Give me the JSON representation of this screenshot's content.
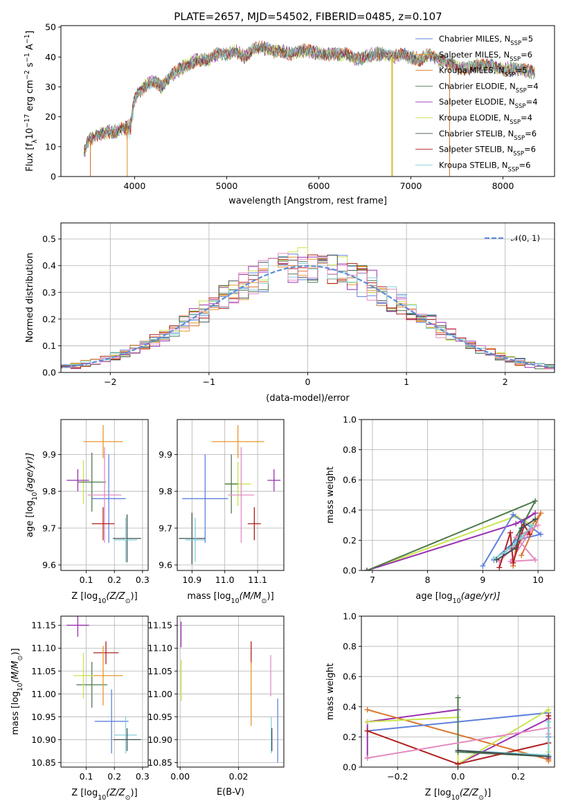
{
  "title": "PLATE=2657, MJD=54502, FIBERID=0485, z=0.107",
  "colors": {
    "Chabrier MILES": "#5e81dd",
    "Salpeter MILES": "#e8962b",
    "Kroupa MILES": "#d9742a",
    "Chabrier ELODIE": "#4d7a4d",
    "Salpeter ELODIE": "#9a2fb0",
    "Kroupa ELODIE": "#c8e44c",
    "Chabrier STELIB": "#3f4f4f",
    "Salpeter STELIB": "#b01e1e",
    "Kroupa STELIB": "#7fd0d8",
    "pinkSeries": "#e48ac0",
    "normal": "#5e8ad6"
  },
  "chart_data": [
    {
      "id": "spectrum",
      "type": "line",
      "xlabel": "wavelength [Angstrom, rest frame]",
      "ylabel_parts": [
        "Flux [f",
        "λ",
        "10",
        "−17",
        " erg cm",
        "−2",
        " s",
        "−1",
        " A",
        "−1",
        "]"
      ],
      "xlim": [
        3200,
        8560
      ],
      "ylim": [
        0,
        50.5
      ],
      "xticks": [
        4000,
        5000,
        6000,
        7000,
        8000
      ],
      "yticks": [
        0,
        10,
        20,
        30,
        40,
        50
      ],
      "legend": [
        {
          "label": "Chabrier MILES, N",
          "sub": "SSP",
          "tail": "=5",
          "color": "#5e81dd"
        },
        {
          "label": "Salpeter MILES, N",
          "sub": "SSP",
          "tail": "=6",
          "color": "#e8962b"
        },
        {
          "label": "Kroupa MILES, N",
          "sub": "SSP",
          "tail": "=5",
          "color": "#d9742a"
        },
        {
          "label": "Chabrier ELODIE, N",
          "sub": "SSP",
          "tail": "=4",
          "color": "#4d7a4d"
        },
        {
          "label": "Salpeter ELODIE, N",
          "sub": "SSP",
          "tail": "=4",
          "color": "#9a2fb0"
        },
        {
          "label": "Kroupa ELODIE, N",
          "sub": "SSP",
          "tail": "=4",
          "color": "#c8e44c"
        },
        {
          "label": "Chabrier STELIB, N",
          "sub": "SSP",
          "tail": "=6",
          "color": "#3f4f4f"
        },
        {
          "label": "Salpeter STELIB, N",
          "sub": "SSP",
          "tail": "=6",
          "color": "#b01e1e"
        },
        {
          "label": "Kroupa STELIB, N",
          "sub": "SSP",
          "tail": "=6",
          "color": "#7fd0d8"
        }
      ],
      "continuum": [
        [
          3450,
          8
        ],
        [
          3500,
          12
        ],
        [
          3600,
          14
        ],
        [
          3700,
          15
        ],
        [
          3800,
          15
        ],
        [
          3850,
          16
        ],
        [
          3950,
          17
        ],
        [
          4000,
          26
        ],
        [
          4100,
          30
        ],
        [
          4200,
          32
        ],
        [
          4300,
          30
        ],
        [
          4400,
          34
        ],
        [
          4500,
          36
        ],
        [
          4600,
          38
        ],
        [
          4700,
          39
        ],
        [
          4800,
          39
        ],
        [
          4900,
          41
        ],
        [
          5000,
          41
        ],
        [
          5100,
          42
        ],
        [
          5200,
          40
        ],
        [
          5300,
          43
        ],
        [
          5400,
          43
        ],
        [
          5500,
          42
        ],
        [
          5600,
          42
        ],
        [
          5700,
          41
        ],
        [
          5800,
          42
        ],
        [
          5900,
          42
        ],
        [
          6000,
          41
        ],
        [
          6100,
          41
        ],
        [
          6200,
          41
        ],
        [
          6300,
          41
        ],
        [
          6400,
          39
        ],
        [
          6500,
          40
        ],
        [
          6600,
          41
        ],
        [
          6700,
          41
        ],
        [
          6800,
          40
        ],
        [
          6900,
          41
        ],
        [
          7000,
          40
        ],
        [
          7100,
          39
        ],
        [
          7200,
          41
        ],
        [
          7300,
          39
        ],
        [
          7400,
          38
        ],
        [
          7500,
          37
        ],
        [
          7600,
          36
        ],
        [
          7700,
          37
        ],
        [
          7800,
          37
        ],
        [
          7900,
          37
        ],
        [
          8000,
          36
        ],
        [
          8100,
          36
        ],
        [
          8200,
          36
        ],
        [
          8300,
          35
        ],
        [
          8350,
          35
        ]
      ],
      "dropouts": [
        [
          3520,
          "#d9742a"
        ],
        [
          3920,
          "#e8962b"
        ],
        [
          6790,
          "#c8e44c"
        ],
        [
          6800,
          "#e8962b"
        ],
        [
          7420,
          "#d9742a"
        ]
      ]
    },
    {
      "id": "residuals",
      "type": "histogram",
      "xlabel": "(data-model)/error",
      "ylabel": "Normed distribution",
      "xlim": [
        -2.5,
        2.5
      ],
      "ylim": [
        0,
        0.56
      ],
      "xticks": [
        -2,
        -1,
        0,
        1,
        2
      ],
      "yticks": [
        0.0,
        0.1,
        0.2,
        0.3,
        0.4,
        0.5
      ],
      "legend_label": "𝒩(0, 1)",
      "bin_width": 0.1
    },
    {
      "id": "age-vs-Z",
      "type": "errorbar",
      "xlabel_parts": [
        "Z [log",
        "10",
        "(Z/Z",
        "⊙",
        ")]"
      ],
      "ylabel_parts": [
        "age  [log",
        "10",
        "(age/yr)]"
      ],
      "xlim": [
        0.01,
        0.32
      ],
      "ylim": [
        9.585,
        9.995
      ],
      "xticks": [
        0.1,
        0.2,
        0.3
      ],
      "yticks": [
        9.6,
        9.7,
        9.8,
        9.9
      ],
      "points": [
        {
          "series": "Chabrier MILES",
          "x": 0.18,
          "xerr": 0.06,
          "y": 9.78,
          "yerr": 0.12
        },
        {
          "series": "Salpeter MILES",
          "x": 0.16,
          "xerr": 0.07,
          "y": 9.935,
          "yerr": 0.045
        },
        {
          "series": "Kroupa ELODIE",
          "x": 0.09,
          "xerr": 0.02,
          "y": 9.825,
          "yerr": 0.06
        },
        {
          "series": "Chabrier ELODIE",
          "x": 0.12,
          "xerr": 0.05,
          "y": 9.825,
          "yerr": 0.08
        },
        {
          "series": "Salpeter ELODIE",
          "x": 0.07,
          "xerr": 0.04,
          "y": 9.83,
          "yerr": 0.03
        },
        {
          "series": "pinkSeries",
          "x": 0.165,
          "xerr": 0.06,
          "y": 9.79,
          "yerr": 0.13
        },
        {
          "series": "Salpeter STELIB",
          "x": 0.16,
          "xerr": 0.04,
          "y": 9.712,
          "yerr": 0.045
        },
        {
          "series": "Chabrier STELIB",
          "x": 0.245,
          "xerr": 0.05,
          "y": 9.672,
          "yerr": 0.065
        },
        {
          "series": "Kroupa STELIB",
          "x": 0.24,
          "xerr": 0.04,
          "y": 9.668,
          "yerr": 0.06
        }
      ]
    },
    {
      "id": "age-vs-mass",
      "type": "errorbar",
      "xlabel_parts": [
        "mass [log",
        "10",
        "(M/M",
        "⊙",
        ")]"
      ],
      "xlim": [
        10.855,
        11.18
      ],
      "ylim": [
        9.585,
        9.995
      ],
      "xticks": [
        10.9,
        11.0,
        11.1
      ],
      "yticks": [
        9.6,
        9.7,
        9.8,
        9.9
      ],
      "points": [
        {
          "series": "Chabrier MILES",
          "x": 10.94,
          "xerr": 0.07,
          "y": 9.78,
          "yerr": 0.12
        },
        {
          "series": "Salpeter MILES",
          "x": 11.04,
          "xerr": 0.08,
          "y": 9.935,
          "yerr": 0.045
        },
        {
          "series": "Kroupa ELODIE",
          "x": 11.04,
          "xerr": 0.04,
          "y": 9.82,
          "yerr": 0.06
        },
        {
          "series": "Chabrier ELODIE",
          "x": 11.02,
          "xerr": 0.02,
          "y": 9.82,
          "yerr": 0.08
        },
        {
          "series": "Salpeter ELODIE",
          "x": 11.15,
          "xerr": 0.02,
          "y": 9.83,
          "yerr": 0.03
        },
        {
          "series": "pinkSeries",
          "x": 11.05,
          "xerr": 0.04,
          "y": 9.79,
          "yerr": 0.13
        },
        {
          "series": "Salpeter STELIB",
          "x": 11.09,
          "xerr": 0.02,
          "y": 9.712,
          "yerr": 0.045
        },
        {
          "series": "Chabrier STELIB",
          "x": 10.9,
          "xerr": 0.04,
          "y": 9.672,
          "yerr": 0.07
        },
        {
          "series": "Kroupa STELIB",
          "x": 10.91,
          "xerr": 0.03,
          "y": 9.668,
          "yerr": 0.06
        }
      ]
    },
    {
      "id": "weight-vs-age",
      "type": "line",
      "xlabel_parts": [
        "age  [log",
        "10",
        "(age/yr)]"
      ],
      "ylabel": "mass weight",
      "xlim": [
        6.8,
        10.3
      ],
      "ylim": [
        0,
        1
      ],
      "xticks": [
        7,
        8,
        9,
        10
      ],
      "yticks": [
        0.0,
        0.2,
        0.4,
        0.6,
        0.8,
        1.0
      ],
      "series": [
        {
          "name": "Kroupa ELODIE",
          "x": [
            6.9,
            9.6,
            9.9
          ],
          "y": [
            0.0,
            0.36,
            0.3
          ]
        },
        {
          "name": "Salpeter ELODIE",
          "x": [
            6.9,
            9.6,
            9.95,
            9.7
          ],
          "y": [
            0.0,
            0.31,
            0.38,
            0.32
          ]
        },
        {
          "name": "Chabrier ELODIE",
          "x": [
            6.9,
            9.95,
            9.5
          ],
          "y": [
            0.0,
            0.46,
            0.15
          ]
        },
        {
          "name": "Chabrier MILES",
          "x": [
            9.0,
            9.55,
            10.05,
            9.6,
            9.2
          ],
          "y": [
            0.03,
            0.37,
            0.24,
            0.2,
            0.07
          ]
        },
        {
          "name": "Kroupa MILES",
          "x": [
            9.55,
            9.6,
            10.05,
            9.7
          ],
          "y": [
            0.03,
            0.15,
            0.38,
            0.1
          ]
        },
        {
          "name": "pinkSeries",
          "x": [
            9.3,
            9.9,
            9.5,
            9.95,
            9.6,
            10.0
          ],
          "y": [
            0.06,
            0.28,
            0.06,
            0.07,
            0.22,
            0.3
          ]
        },
        {
          "name": "Salpeter STELIB",
          "x": [
            9.3,
            9.5,
            9.55,
            9.75,
            9.85
          ],
          "y": [
            0.02,
            0.25,
            0.05,
            0.3,
            0.24
          ]
        },
        {
          "name": "Kroupa STELIB",
          "x": [
            9.2,
            9.4,
            9.6,
            9.7,
            9.9
          ],
          "y": [
            0.08,
            0.12,
            0.18,
            0.22,
            0.3
          ]
        },
        {
          "name": "Chabrier STELIB",
          "x": [
            9.25,
            9.6,
            9.7,
            9.95
          ],
          "y": [
            0.07,
            0.15,
            0.28,
            0.34
          ]
        }
      ]
    },
    {
      "id": "mass-vs-Z",
      "type": "errorbar",
      "xlabel_parts": [
        "Z [log",
        "10",
        "(Z/Z",
        "⊙",
        ")]"
      ],
      "ylabel_parts": [
        "mass [log",
        "10",
        "(M/M",
        "⊙",
        ")]"
      ],
      "xlim": [
        0.01,
        0.32
      ],
      "ylim": [
        10.84,
        11.17
      ],
      "xticks": [
        0.1,
        0.2,
        0.3
      ],
      "yticks": [
        10.85,
        10.9,
        10.95,
        11.0,
        11.05,
        11.1,
        11.15
      ],
      "points": [
        {
          "series": "Salpeter ELODIE",
          "x": 0.07,
          "xerr": 0.04,
          "y": 11.15,
          "yerr": 0.025
        },
        {
          "series": "Salpeter STELIB",
          "x": 0.17,
          "xerr": 0.045,
          "y": 11.09,
          "yerr": 0.025
        },
        {
          "series": "Chabrier ELODIE",
          "x": 0.12,
          "xerr": 0.055,
          "y": 11.02,
          "yerr": 0.05
        },
        {
          "series": "Salpeter MILES",
          "x": 0.16,
          "xerr": 0.07,
          "y": 11.04,
          "yerr": 0.065
        },
        {
          "series": "Kroupa ELODIE",
          "x": 0.09,
          "xerr": 0.035,
          "y": 11.04,
          "yerr": 0.05
        },
        {
          "series": "Chabrier MILES",
          "x": 0.19,
          "xerr": 0.06,
          "y": 10.94,
          "yerr": 0.07
        },
        {
          "series": "Kroupa STELIB",
          "x": 0.24,
          "xerr": 0.04,
          "y": 10.91,
          "yerr": 0.04
        },
        {
          "series": "Chabrier STELIB",
          "x": 0.245,
          "xerr": 0.05,
          "y": 10.9,
          "yerr": 0.025
        }
      ]
    },
    {
      "id": "mass-vs-EBV",
      "type": "errorbar",
      "xlabel": "E(B-V)",
      "xlim": [
        -0.001,
        0.0355
      ],
      "ylim": [
        10.84,
        11.17
      ],
      "xticks": [
        0.0,
        0.02
      ],
      "yticks": [
        10.85,
        10.9,
        10.95,
        11.0,
        11.05,
        11.1,
        11.15
      ],
      "points": [
        {
          "series": "Salpeter ELODIE",
          "x": 0.0003,
          "y": 11.13,
          "yerr": 0.028
        },
        {
          "series": "Kroupa ELODIE",
          "x": 0.0004,
          "y": 11.03,
          "yerr": 0.045
        },
        {
          "series": "Salpeter STELIB",
          "x": 0.0243,
          "y": 11.09,
          "yerr": 0.025
        },
        {
          "series": "Salpeter MILES",
          "x": 0.0243,
          "y": 11.0,
          "yerr": 0.07
        },
        {
          "series": "pinkSeries",
          "x": 0.031,
          "y": 11.04,
          "yerr": 0.045
        },
        {
          "series": "Kroupa STELIB",
          "x": 0.0312,
          "y": 10.91,
          "yerr": 0.04
        },
        {
          "series": "Chabrier STELIB",
          "x": 0.0314,
          "y": 10.9,
          "yerr": 0.025
        },
        {
          "series": "Chabrier MILES",
          "x": 0.0334,
          "y": 10.92,
          "yerr": 0.07
        }
      ]
    },
    {
      "id": "weight-vs-Z",
      "type": "line",
      "xlabel_parts": [
        "Z [log",
        "10",
        "(Z/Z",
        "⊙",
        ")]"
      ],
      "ylabel": "mass weight",
      "xlim": [
        -0.32,
        0.32
      ],
      "ylim": [
        0,
        1
      ],
      "xticks": [
        -0.2,
        0.0,
        0.2
      ],
      "yticks": [
        0.0,
        0.2,
        0.4,
        0.6,
        0.8,
        1.0
      ],
      "series": [
        {
          "name": "Salpeter ELODIE",
          "x": [
            -0.3,
            -0.3,
            0.0,
            0.0,
            0.3,
            0.3
          ],
          "y": [
            0.06,
            0.3,
            0.38,
            0.02,
            0.32,
            0.06
          ]
        },
        {
          "name": "Kroupa MILES",
          "x": [
            -0.3,
            0.3,
            0.3
          ],
          "y": [
            0.38,
            0.05,
            0.04
          ]
        },
        {
          "name": "Chabrier MILES",
          "x": [
            -0.3,
            0.3,
            0.3
          ],
          "y": [
            0.24,
            0.36,
            0.2
          ]
        },
        {
          "name": "Kroupa ELODIE",
          "x": [
            -0.3,
            0.0,
            0.0,
            0.3,
            0.3
          ],
          "y": [
            0.3,
            0.33,
            0.02,
            0.38,
            0.1
          ]
        },
        {
          "name": "Chabrier ELODIE",
          "x": [
            0.0,
            0.0,
            0.3
          ],
          "y": [
            0.46,
            0.1,
            0.07
          ]
        },
        {
          "name": "Salpeter STELIB",
          "x": [
            -0.3,
            0.0,
            0.3,
            0.3
          ],
          "y": [
            0.24,
            0.02,
            0.16,
            0.34
          ]
        },
        {
          "name": "pinkSeries",
          "x": [
            -0.3,
            0.3,
            0.3
          ],
          "y": [
            0.06,
            0.26,
            0.22
          ]
        },
        {
          "name": "Kroupa STELIB",
          "x": [
            0.0,
            0.3,
            0.3
          ],
          "y": [
            0.11,
            0.08,
            0.3
          ]
        },
        {
          "name": "Chabrier STELIB",
          "x": [
            0.0,
            0.3
          ],
          "y": [
            0.11,
            0.07
          ]
        }
      ]
    }
  ]
}
